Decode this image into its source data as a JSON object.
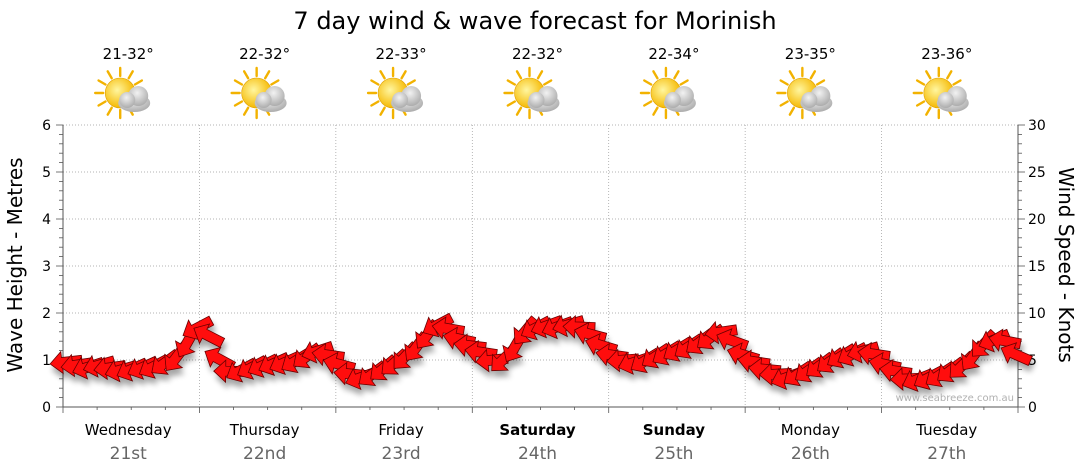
{
  "chart_data": {
    "type": "line",
    "title": "7 day wind & wave forecast for Morinish",
    "ylabel_left": "Wave Height - Metres",
    "ylabel_right": "Wind Speed - Knots",
    "ylim_left": [
      0,
      6
    ],
    "ylim_right": [
      0,
      30
    ],
    "yticks_left": [
      "0",
      "1",
      "2",
      "3",
      "4",
      "5",
      "6"
    ],
    "yticks_right": [
      "0",
      "5",
      "10",
      "15",
      "20",
      "25",
      "30"
    ],
    "grid": true,
    "watermark": "www.seabreeze.com.au",
    "days": [
      {
        "name": "Wednesday",
        "num": "21st",
        "temp": "21-32°",
        "bold": false
      },
      {
        "name": "Thursday",
        "num": "22nd",
        "temp": "22-32°",
        "bold": false
      },
      {
        "name": "Friday",
        "num": "23rd",
        "temp": "22-33°",
        "bold": false
      },
      {
        "name": "Saturday",
        "num": "24th",
        "temp": "22-32°",
        "bold": true
      },
      {
        "name": "Sunday",
        "num": "25th",
        "temp": "22-34°",
        "bold": true
      },
      {
        "name": "Monday",
        "num": "26th",
        "temp": "23-35°",
        "bold": false
      },
      {
        "name": "Tuesday",
        "num": "27th",
        "temp": "23-36°",
        "bold": false
      }
    ],
    "series": [
      {
        "name": "Wind Speed - Knots",
        "x": [
          0,
          0.08,
          0.16,
          0.24,
          0.32,
          0.4,
          0.48,
          0.56,
          0.64,
          0.72,
          0.8,
          0.88,
          0.96,
          1.04,
          1.12,
          1.2,
          1.28,
          1.36,
          1.44,
          1.52,
          1.6,
          1.68,
          1.76,
          1.84,
          1.92,
          2.0,
          2.08,
          2.16,
          2.24,
          2.32,
          2.4,
          2.48,
          2.56,
          2.64,
          2.72,
          2.8,
          2.88,
          2.96,
          3.04,
          3.12,
          3.2,
          3.28,
          3.36,
          3.44,
          3.52,
          3.6,
          3.68,
          3.76,
          3.84,
          3.92,
          4.0,
          4.08,
          4.16,
          4.24,
          4.32,
          4.4,
          4.48,
          4.56,
          4.64,
          4.72,
          4.8,
          4.88,
          4.96,
          5.04,
          5.12,
          5.2,
          5.28,
          5.36,
          5.44,
          5.52,
          5.6,
          5.68,
          5.76,
          5.84,
          5.92,
          6.0,
          6.08,
          6.16,
          6.24,
          6.32,
          6.4,
          6.48,
          6.56,
          6.64,
          6.72,
          6.8,
          6.88,
          6.96
        ],
        "values": [
          4.8,
          4.5,
          4.3,
          4.5,
          4.2,
          4.0,
          4.1,
          4.3,
          4.4,
          4.8,
          5.4,
          7.0,
          8.5,
          7.5,
          5.0,
          3.8,
          4.0,
          4.3,
          4.5,
          4.7,
          4.8,
          5.0,
          5.5,
          6.0,
          5.5,
          4.5,
          3.5,
          3.2,
          3.6,
          4.2,
          4.8,
          5.5,
          6.5,
          7.8,
          8.8,
          8.3,
          7.2,
          6.5,
          5.8,
          5.0,
          5.2,
          6.5,
          8.2,
          8.5,
          8.7,
          8.6,
          8.8,
          8.5,
          7.7,
          6.5,
          5.5,
          5.0,
          4.8,
          5.0,
          5.5,
          5.8,
          6.2,
          6.5,
          7.0,
          7.5,
          8.0,
          7.0,
          5.5,
          4.8,
          4.0,
          3.5,
          3.2,
          3.6,
          4.0,
          4.5,
          5.0,
          5.5,
          5.7,
          6.0,
          5.6,
          4.5,
          3.8,
          3.0,
          3.0,
          3.2,
          3.5,
          4.0,
          4.5,
          5.5,
          6.8,
          7.2,
          7.0,
          5.5
        ]
      }
    ]
  }
}
